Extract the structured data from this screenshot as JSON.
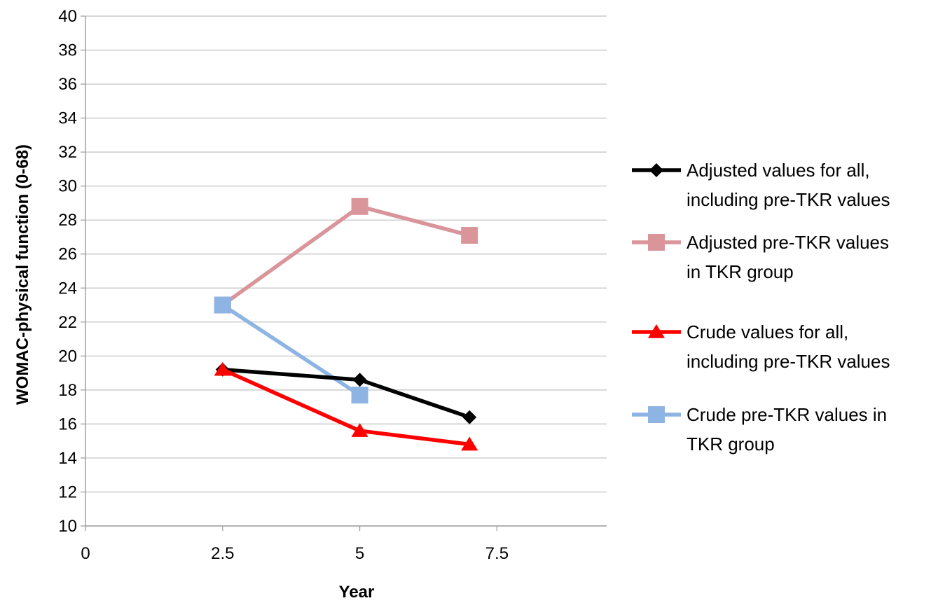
{
  "chart_data": {
    "type": "line",
    "title": "",
    "xlabel": "Year",
    "ylabel": "WOMAC-physical function (0-68)",
    "xlim": [
      0,
      9.5
    ],
    "ylim": [
      10,
      40
    ],
    "x_ticks": [
      0,
      2.5,
      5,
      7.5
    ],
    "x_tick_labels": [
      "0",
      "2.5",
      "5",
      "7.5"
    ],
    "y_ticks": [
      10,
      12,
      14,
      16,
      18,
      20,
      22,
      24,
      26,
      28,
      30,
      32,
      34,
      36,
      38,
      40
    ],
    "grid": true,
    "legend_position": "right",
    "series": [
      {
        "name_lines": [
          "Adjusted values for all,",
          "including pre-TKR values"
        ],
        "color": "#000000",
        "marker": "diamond",
        "points": [
          [
            2.5,
            19.2
          ],
          [
            5,
            18.6
          ],
          [
            7,
            16.4
          ]
        ]
      },
      {
        "name_lines": [
          "Adjusted pre-TKR values",
          "in TKR group"
        ],
        "color": "#d9959a",
        "marker": "square",
        "points": [
          [
            2.5,
            23.0
          ],
          [
            5,
            28.8
          ],
          [
            7,
            27.1
          ]
        ]
      },
      {
        "name_lines": [
          "Crude values for all,",
          "including pre-TKR values"
        ],
        "color": "#ff0000",
        "marker": "triangle",
        "points": [
          [
            2.5,
            19.2
          ],
          [
            5,
            15.6
          ],
          [
            7,
            14.8
          ]
        ]
      },
      {
        "name_lines": [
          "Crude pre-TKR values in",
          "TKR group"
        ],
        "color": "#8db4e3",
        "marker": "square",
        "points": [
          [
            2.5,
            23.0
          ],
          [
            5,
            17.7
          ]
        ]
      }
    ]
  }
}
